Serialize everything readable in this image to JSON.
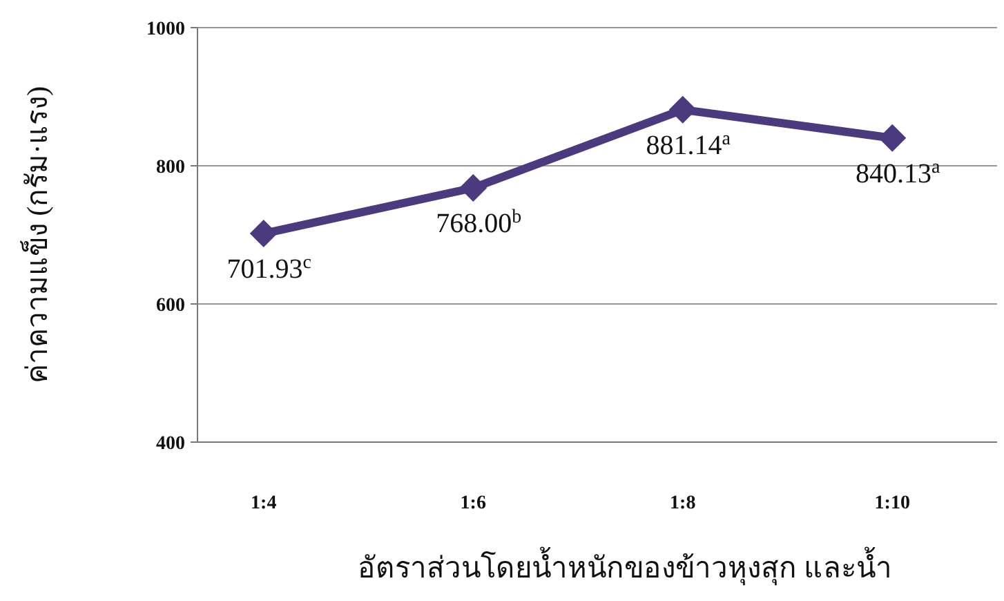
{
  "chart_data": {
    "type": "line",
    "xlabel": "อัตราส่วนโดยน้ำหนักของข้าวหุงสุก และน้ำ",
    "ylabel": "ค่าความแข็ง (กรัม·แรง)",
    "categories": [
      "1:4",
      "1:6",
      "1:8",
      "1:10"
    ],
    "series": [
      {
        "color": "#4b3a7e",
        "values": [
          701.93,
          768.0,
          881.14,
          840.13
        ],
        "value_labels": [
          "701.93$^{c}$",
          "768.00$^{b}$",
          "881.14$^{a}$",
          "840.13$^{a}$"
        ]
      }
    ],
    "ylim": [
      400,
      1000
    ],
    "yticks": [
      400,
      600,
      800,
      1000
    ],
    "grid": "y",
    "marker": "diamond",
    "line_style": "solid"
  }
}
